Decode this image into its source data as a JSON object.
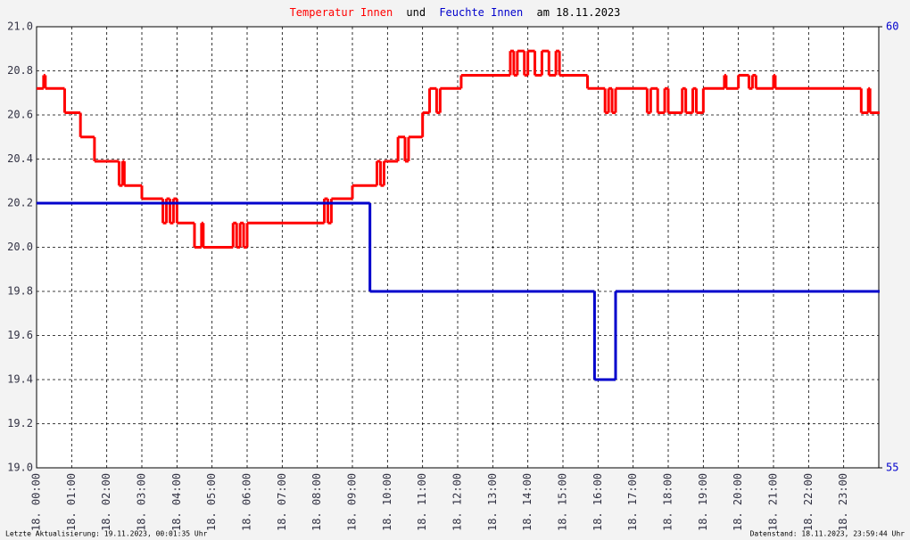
{
  "chart_data": {
    "type": "line",
    "title_connector": "und",
    "title_date": "am 18.11.2023",
    "footer_left": "Letzte Aktualisierung: 19.11.2023, 00:01:35 Uhr",
    "footer_right": "Datenstand: 18.11.2023, 23:59:44 Uhr",
    "step": true,
    "grid": true,
    "xlim": [
      0,
      24
    ],
    "xticks": [
      {
        "value": 0,
        "label": "18. 00:00"
      },
      {
        "value": 1,
        "label": "18. 01:00"
      },
      {
        "value": 2,
        "label": "18. 02:00"
      },
      {
        "value": 3,
        "label": "18. 03:00"
      },
      {
        "value": 4,
        "label": "18. 04:00"
      },
      {
        "value": 5,
        "label": "18. 05:00"
      },
      {
        "value": 6,
        "label": "18. 06:00"
      },
      {
        "value": 7,
        "label": "18. 07:00"
      },
      {
        "value": 8,
        "label": "18. 08:00"
      },
      {
        "value": 9,
        "label": "18. 09:00"
      },
      {
        "value": 10,
        "label": "18. 10:00"
      },
      {
        "value": 11,
        "label": "18. 11:00"
      },
      {
        "value": 12,
        "label": "18. 12:00"
      },
      {
        "value": 13,
        "label": "18. 13:00"
      },
      {
        "value": 14,
        "label": "18. 14:00"
      },
      {
        "value": 15,
        "label": "18. 15:00"
      },
      {
        "value": 16,
        "label": "18. 16:00"
      },
      {
        "value": 17,
        "label": "18. 17:00"
      },
      {
        "value": 18,
        "label": "18. 18:00"
      },
      {
        "value": 19,
        "label": "18. 19:00"
      },
      {
        "value": 20,
        "label": "18. 20:00"
      },
      {
        "value": 21,
        "label": "18. 21:00"
      },
      {
        "value": 22,
        "label": "18. 22:00"
      },
      {
        "value": 23,
        "label": "18. 23:00"
      }
    ],
    "ylim": [
      19.0,
      21.0
    ],
    "yticks": [
      {
        "value": 19,
        "label": "19.0"
      },
      19.2,
      19.4,
      19.6,
      19.8,
      {
        "value": 20,
        "label": "20.0"
      },
      20.2,
      20.4,
      20.6,
      20.8,
      {
        "value": 21,
        "label": "21.0"
      }
    ],
    "y2lim": [
      55,
      60
    ],
    "y2ticks": [
      55,
      60
    ],
    "series": [
      {
        "name": "Temperatur Innen",
        "color": "#ff0000",
        "x": [
          0,
          0.2,
          0.25,
          0.8,
          1.25,
          1.65,
          2.35,
          2.45,
          2.5,
          3.0,
          3.6,
          3.7,
          3.8,
          3.9,
          4.0,
          4.5,
          4.7,
          4.75,
          5.6,
          5.7,
          5.8,
          5.9,
          6.0,
          8.2,
          8.3,
          8.4,
          9.0,
          9.7,
          9.8,
          9.9,
          10.3,
          10.5,
          10.6,
          11.0,
          11.2,
          11.4,
          11.5,
          12.1,
          13.5,
          13.6,
          13.7,
          13.9,
          14.0,
          14.2,
          14.4,
          14.6,
          14.8,
          14.9,
          15.7,
          16.2,
          16.3,
          16.4,
          16.5,
          17.4,
          17.5,
          17.7,
          17.9,
          18.0,
          18.4,
          18.5,
          18.7,
          18.8,
          19.0,
          19.6,
          19.65,
          20.0,
          20.3,
          20.4,
          20.5,
          21.0,
          21.05,
          23.5,
          23.7,
          23.75,
          24
        ],
        "values": [
          20.72,
          20.78,
          20.72,
          20.61,
          20.5,
          20.39,
          20.28,
          20.39,
          20.28,
          20.22,
          20.11,
          20.22,
          20.11,
          20.22,
          20.11,
          20.0,
          20.11,
          20.0,
          20.11,
          20.0,
          20.11,
          20.0,
          20.11,
          20.22,
          20.11,
          20.22,
          20.28,
          20.39,
          20.28,
          20.39,
          20.5,
          20.39,
          20.5,
          20.61,
          20.72,
          20.61,
          20.72,
          20.78,
          20.89,
          20.78,
          20.89,
          20.78,
          20.89,
          20.78,
          20.89,
          20.78,
          20.89,
          20.78,
          20.72,
          20.61,
          20.72,
          20.61,
          20.72,
          20.61,
          20.72,
          20.61,
          20.72,
          20.61,
          20.72,
          20.61,
          20.72,
          20.61,
          20.72,
          20.78,
          20.72,
          20.78,
          20.72,
          20.78,
          20.72,
          20.78,
          20.72,
          20.61,
          20.72,
          20.61,
          20.61
        ]
      },
      {
        "name": "Feuchte Innen",
        "color": "#0000cc",
        "axis": "y2",
        "x": [
          0,
          9.5,
          15.9,
          16.5,
          24
        ],
        "values": [
          58,
          57,
          56,
          57,
          57
        ]
      }
    ]
  }
}
